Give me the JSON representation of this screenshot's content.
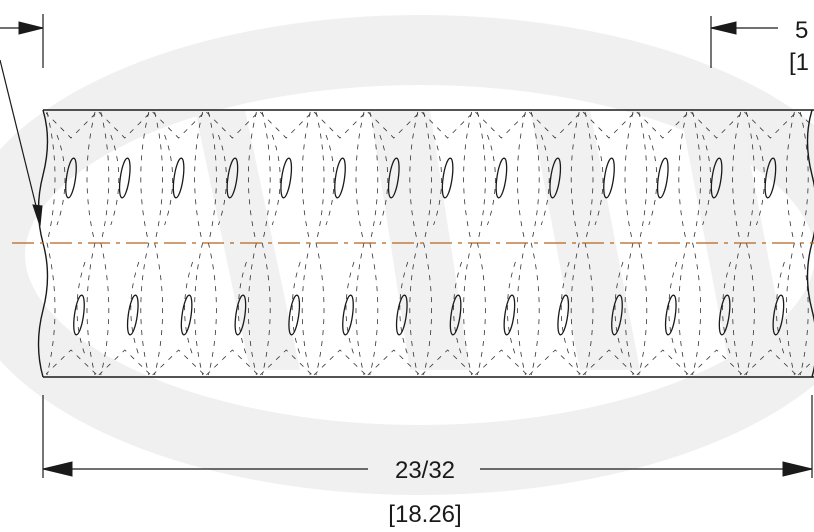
{
  "dimensions": {
    "width_fraction": "23/32",
    "width_metric": "[18.26]",
    "right_fraction_partial": "5",
    "right_metric_partial": "[1"
  },
  "colors": {
    "outline": "#1a1a1a",
    "hidden_lines": "#333333",
    "centerline": "#b5651d",
    "watermark": "#f0f0f0",
    "background": "#ffffff"
  },
  "drawing": {
    "top_hole_count": 14,
    "bottom_hole_count": 14
  }
}
